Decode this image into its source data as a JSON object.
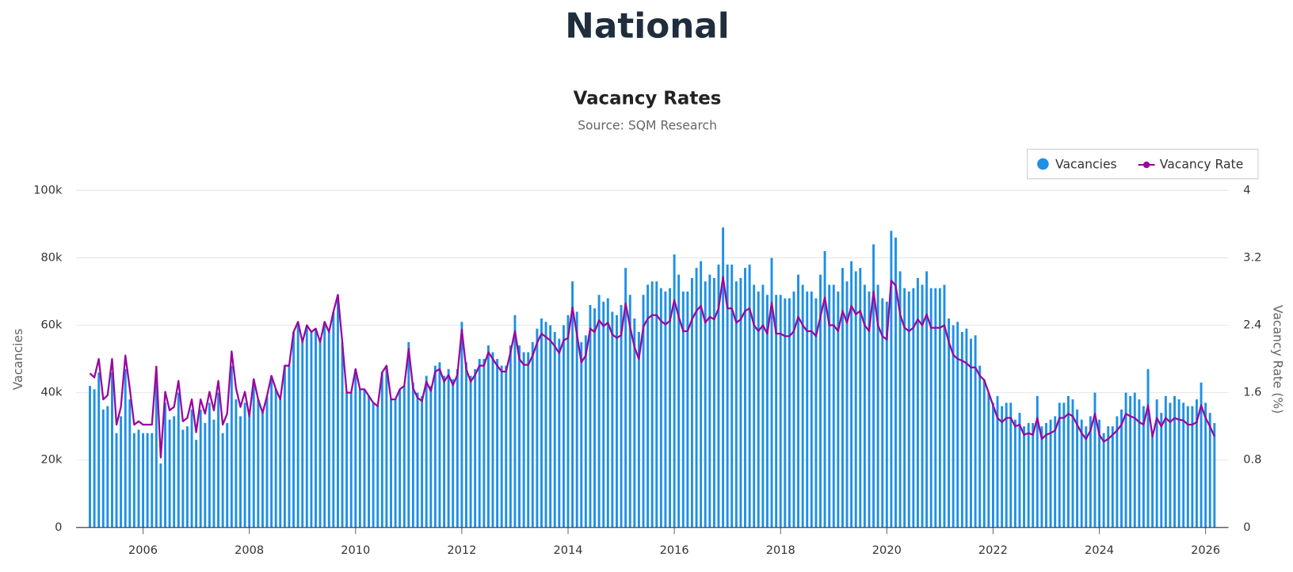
{
  "heading": "National",
  "chart_data": {
    "type": "combo",
    "title": "Vacancy Rates",
    "subtitle": "Source: SQM Research",
    "y_label": "Vacancies",
    "y2_label": "Vacancy Rate (%)",
    "legend": "top-right",
    "grid": true,
    "xlim": [
      2004.74,
      2026.43
    ],
    "xticks": [
      2006,
      2008,
      2010,
      2012,
      2014,
      2016,
      2018,
      2020,
      2022,
      2024,
      2026
    ],
    "ylim": [
      0,
      100000
    ],
    "yticks": [
      0,
      {
        "value": 20000,
        "label": "20k"
      },
      {
        "value": 40000,
        "label": "40k"
      },
      {
        "value": 60000,
        "label": "60k"
      },
      {
        "value": 80000,
        "label": "80k"
      },
      {
        "value": 100000,
        "label": "100k"
      }
    ],
    "y2lim": [
      0,
      4
    ],
    "y2ticks": [
      0,
      0.8,
      1.6,
      2.4,
      3.2,
      4
    ],
    "x": [
      2005,
      2005.083,
      2005.167,
      2005.25,
      2005.333,
      2005.417,
      2005.5,
      2005.583,
      2005.667,
      2005.75,
      2005.833,
      2005.917,
      2006,
      2006.083,
      2006.167,
      2006.25,
      2006.333,
      2006.417,
      2006.5,
      2006.583,
      2006.667,
      2006.75,
      2006.833,
      2006.917,
      2007,
      2007.083,
      2007.167,
      2007.25,
      2007.333,
      2007.417,
      2007.5,
      2007.583,
      2007.667,
      2007.75,
      2007.833,
      2007.917,
      2008,
      2008.083,
      2008.167,
      2008.25,
      2008.333,
      2008.417,
      2008.5,
      2008.583,
      2008.667,
      2008.75,
      2008.833,
      2008.917,
      2009,
      2009.083,
      2009.167,
      2009.25,
      2009.333,
      2009.417,
      2009.5,
      2009.583,
      2009.667,
      2009.75,
      2009.833,
      2009.917,
      2010,
      2010.083,
      2010.167,
      2010.25,
      2010.333,
      2010.417,
      2010.5,
      2010.583,
      2010.667,
      2010.75,
      2010.833,
      2010.917,
      2011,
      2011.083,
      2011.167,
      2011.25,
      2011.333,
      2011.417,
      2011.5,
      2011.583,
      2011.667,
      2011.75,
      2011.833,
      2011.917,
      2012,
      2012.083,
      2012.167,
      2012.25,
      2012.333,
      2012.417,
      2012.5,
      2012.583,
      2012.667,
      2012.75,
      2012.833,
      2012.917,
      2013,
      2013.083,
      2013.167,
      2013.25,
      2013.333,
      2013.417,
      2013.5,
      2013.583,
      2013.667,
      2013.75,
      2013.833,
      2013.917,
      2014,
      2014.083,
      2014.167,
      2014.25,
      2014.333,
      2014.417,
      2014.5,
      2014.583,
      2014.667,
      2014.75,
      2014.833,
      2014.917,
      2015,
      2015.083,
      2015.167,
      2015.25,
      2015.333,
      2015.417,
      2015.5,
      2015.583,
      2015.667,
      2015.75,
      2015.833,
      2015.917,
      2016,
      2016.083,
      2016.167,
      2016.25,
      2016.333,
      2016.417,
      2016.5,
      2016.583,
      2016.667,
      2016.75,
      2016.833,
      2016.917,
      2017,
      2017.083,
      2017.167,
      2017.25,
      2017.333,
      2017.417,
      2017.5,
      2017.583,
      2017.667,
      2017.75,
      2017.833,
      2017.917,
      2018,
      2018.083,
      2018.167,
      2018.25,
      2018.333,
      2018.417,
      2018.5,
      2018.583,
      2018.667,
      2018.75,
      2018.833,
      2018.917,
      2019,
      2019.083,
      2019.167,
      2019.25,
      2019.333,
      2019.417,
      2019.5,
      2019.583,
      2019.667,
      2019.75,
      2019.833,
      2019.917,
      2020,
      2020.083,
      2020.167,
      2020.25,
      2020.333,
      2020.417,
      2020.5,
      2020.583,
      2020.667,
      2020.75,
      2020.833,
      2020.917,
      2021,
      2021.083,
      2021.167,
      2021.25,
      2021.333,
      2021.417,
      2021.5,
      2021.583,
      2021.667,
      2021.75,
      2021.833,
      2021.917,
      2022,
      2022.083,
      2022.167,
      2022.25,
      2022.333,
      2022.417,
      2022.5,
      2022.583,
      2022.667,
      2022.75,
      2022.833,
      2022.917,
      2023,
      2023.083,
      2023.167,
      2023.25,
      2023.333,
      2023.417,
      2023.5,
      2023.583,
      2023.667,
      2023.75,
      2023.833,
      2023.917,
      2024,
      2024.083,
      2024.167,
      2024.25,
      2024.333,
      2024.417,
      2024.5,
      2024.583,
      2024.667,
      2024.75,
      2024.833,
      2024.917,
      2025,
      2025.083,
      2025.167,
      2025.25,
      2025.333,
      2025.417,
      2025.5,
      2025.583,
      2025.667,
      2025.75,
      2025.833,
      2025.917,
      2026,
      2026.083,
      2026.167
    ],
    "series": [
      {
        "name": "Vacancies",
        "type": "bar",
        "axis": "y",
        "color": "#1e90e6",
        "values": [
          42000,
          41000,
          46000,
          35000,
          36000,
          46000,
          28000,
          33000,
          47000,
          38000,
          28000,
          29000,
          28000,
          28000,
          28000,
          44000,
          19000,
          37000,
          32000,
          33000,
          40000,
          29000,
          30000,
          35000,
          26000,
          35000,
          31000,
          37000,
          32000,
          40000,
          28000,
          31000,
          48000,
          38000,
          33000,
          37000,
          33000,
          44000,
          38000,
          34000,
          39000,
          45000,
          41000,
          38000,
          48000,
          48000,
          58000,
          61000,
          55000,
          60000,
          58000,
          59000,
          55000,
          61000,
          58000,
          64000,
          69000,
          55000,
          40000,
          40000,
          47000,
          41000,
          41000,
          39000,
          37000,
          36000,
          46000,
          48000,
          38000,
          38000,
          41000,
          42000,
          55000,
          43000,
          40000,
          39000,
          45000,
          42000,
          48000,
          49000,
          45000,
          47000,
          44000,
          47000,
          61000,
          49000,
          45000,
          47000,
          50000,
          50000,
          54000,
          52000,
          50000,
          48000,
          48000,
          54000,
          63000,
          54000,
          52000,
          52000,
          55000,
          59000,
          62000,
          61000,
          60000,
          58000,
          56000,
          60000,
          63000,
          73000,
          64000,
          55000,
          57000,
          66000,
          65000,
          69000,
          67000,
          68000,
          64000,
          63000,
          66000,
          77000,
          69000,
          62000,
          58000,
          69000,
          72000,
          73000,
          73000,
          71000,
          70000,
          71000,
          81000,
          75000,
          70000,
          70000,
          74000,
          77000,
          79000,
          73000,
          75000,
          74000,
          78000,
          89000,
          78000,
          78000,
          73000,
          74000,
          77000,
          78000,
          72000,
          70000,
          72000,
          69000,
          80000,
          69000,
          69000,
          68000,
          68000,
          70000,
          75000,
          72000,
          70000,
          70000,
          68000,
          75000,
          82000,
          72000,
          72000,
          70000,
          77000,
          73000,
          79000,
          76000,
          77000,
          72000,
          70000,
          84000,
          72000,
          68000,
          67000,
          88000,
          86000,
          76000,
          71000,
          70000,
          71000,
          74000,
          72000,
          76000,
          71000,
          71000,
          71000,
          72000,
          62000,
          60000,
          61000,
          58000,
          59000,
          56000,
          57000,
          48000,
          44000,
          40000,
          37000,
          39000,
          36000,
          37000,
          37000,
          32000,
          34000,
          30000,
          31000,
          31000,
          39000,
          30000,
          31000,
          32000,
          33000,
          37000,
          37000,
          39000,
          38000,
          35000,
          32000,
          30000,
          33000,
          40000,
          32000,
          28000,
          30000,
          30000,
          33000,
          35000,
          40000,
          39000,
          40000,
          38000,
          36000,
          47000,
          28000,
          38000,
          34000,
          39000,
          37000,
          39000,
          38000,
          37000,
          36000,
          36000,
          38000,
          43000,
          37000,
          34000,
          31000
        ]
      },
      {
        "name": "Vacancy Rate",
        "type": "line",
        "axis": "y2",
        "color": "#99069f",
        "values": [
          1.83,
          1.78,
          2.0,
          1.52,
          1.57,
          2.0,
          1.22,
          1.43,
          2.04,
          1.65,
          1.22,
          1.26,
          1.22,
          1.22,
          1.22,
          1.91,
          0.83,
          1.61,
          1.39,
          1.43,
          1.74,
          1.26,
          1.3,
          1.52,
          1.13,
          1.52,
          1.35,
          1.61,
          1.39,
          1.74,
          1.22,
          1.35,
          2.09,
          1.65,
          1.43,
          1.61,
          1.32,
          1.76,
          1.52,
          1.36,
          1.56,
          1.8,
          1.64,
          1.52,
          1.92,
          1.92,
          2.32,
          2.44,
          2.2,
          2.4,
          2.32,
          2.36,
          2.2,
          2.44,
          2.32,
          2.56,
          2.76,
          2.2,
          1.6,
          1.6,
          1.88,
          1.64,
          1.64,
          1.56,
          1.48,
          1.44,
          1.84,
          1.92,
          1.52,
          1.52,
          1.64,
          1.68,
          2.12,
          1.65,
          1.54,
          1.5,
          1.73,
          1.62,
          1.85,
          1.88,
          1.73,
          1.81,
          1.69,
          1.81,
          2.35,
          1.88,
          1.73,
          1.81,
          1.92,
          1.92,
          2.08,
          2.0,
          1.92,
          1.85,
          1.85,
          2.08,
          2.33,
          2.0,
          1.93,
          1.93,
          2.04,
          2.19,
          2.3,
          2.26,
          2.22,
          2.15,
          2.07,
          2.22,
          2.25,
          2.61,
          2.29,
          1.96,
          2.04,
          2.36,
          2.32,
          2.46,
          2.39,
          2.43,
          2.29,
          2.25,
          2.28,
          2.66,
          2.38,
          2.14,
          2.0,
          2.38,
          2.48,
          2.52,
          2.52,
          2.45,
          2.41,
          2.45,
          2.7,
          2.5,
          2.33,
          2.33,
          2.47,
          2.57,
          2.63,
          2.43,
          2.5,
          2.47,
          2.6,
          2.97,
          2.6,
          2.6,
          2.43,
          2.47,
          2.57,
          2.6,
          2.4,
          2.33,
          2.4,
          2.3,
          2.67,
          2.3,
          2.3,
          2.27,
          2.27,
          2.33,
          2.5,
          2.4,
          2.33,
          2.33,
          2.27,
          2.5,
          2.73,
          2.4,
          2.4,
          2.33,
          2.57,
          2.43,
          2.63,
          2.53,
          2.57,
          2.4,
          2.33,
          2.8,
          2.4,
          2.27,
          2.23,
          2.93,
          2.87,
          2.53,
          2.37,
          2.33,
          2.37,
          2.47,
          2.4,
          2.53,
          2.37,
          2.37,
          2.37,
          2.4,
          2.2,
          2.05,
          2.0,
          1.98,
          1.95,
          1.9,
          1.9,
          1.8,
          1.75,
          1.6,
          1.45,
          1.3,
          1.25,
          1.3,
          1.3,
          1.2,
          1.22,
          1.1,
          1.12,
          1.1,
          1.3,
          1.05,
          1.1,
          1.12,
          1.15,
          1.3,
          1.3,
          1.35,
          1.32,
          1.22,
          1.12,
          1.05,
          1.15,
          1.35,
          1.1,
          1.02,
          1.05,
          1.1,
          1.15,
          1.22,
          1.35,
          1.32,
          1.3,
          1.25,
          1.22,
          1.45,
          1.08,
          1.3,
          1.2,
          1.3,
          1.25,
          1.3,
          1.28,
          1.27,
          1.22,
          1.22,
          1.25,
          1.45,
          1.3,
          1.2,
          1.08
        ]
      }
    ]
  }
}
